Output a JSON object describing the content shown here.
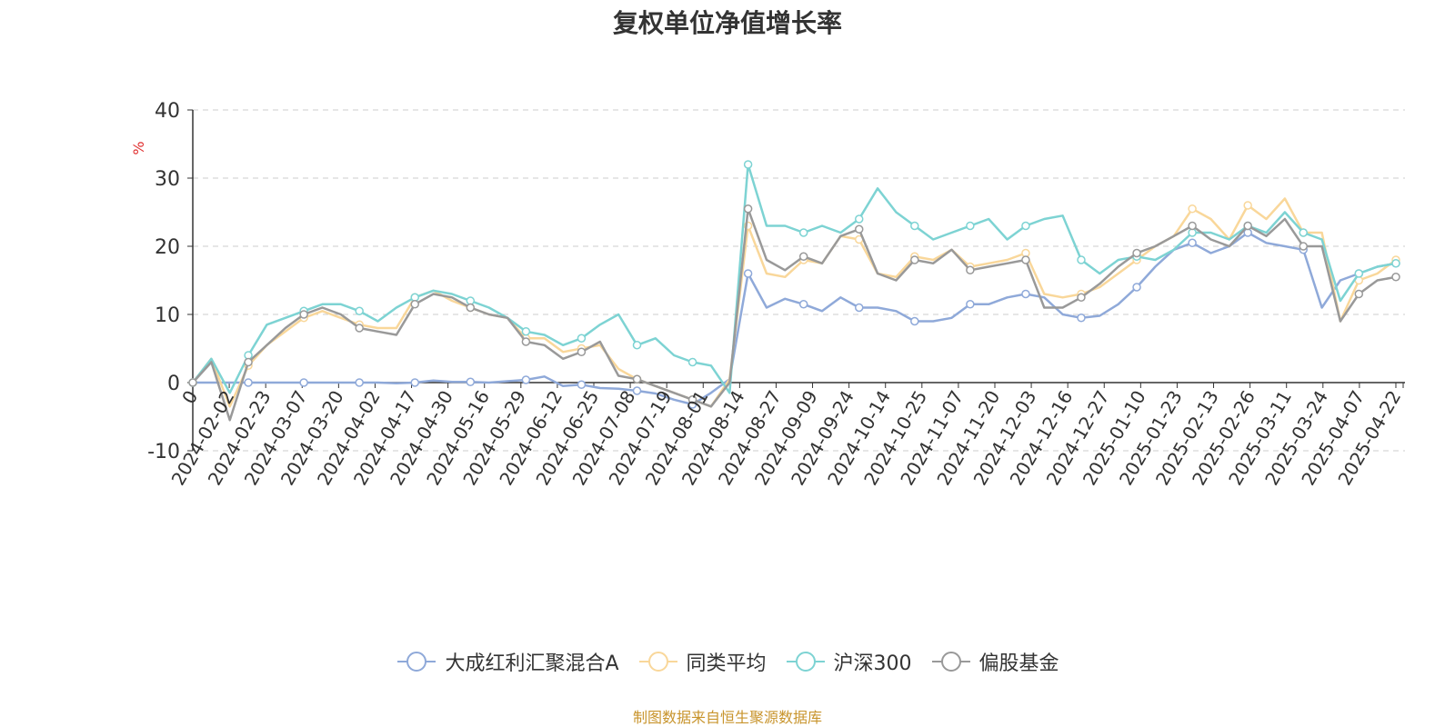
{
  "chart_data": {
    "type": "line",
    "title": "复权单位净值增长率",
    "ylabel": "%",
    "xlabel": "",
    "ylim": [
      -10,
      40
    ],
    "yticks": [
      -10,
      0,
      10,
      20,
      30,
      40
    ],
    "x_tick_labels": [
      "0",
      "2024-02-02",
      "2024-02-23",
      "2024-03-07",
      "2024-03-20",
      "2024-04-02",
      "2024-04-17",
      "2024-04-30",
      "2024-05-16",
      "2024-05-29",
      "2024-06-12",
      "2024-06-25",
      "2024-07-08",
      "2024-07-19",
      "2024-08-01",
      "2024-08-14",
      "2024-08-27",
      "2024-09-09",
      "2024-09-24",
      "2024-10-14",
      "2024-10-25",
      "2024-11-07",
      "2024-11-20",
      "2024-12-03",
      "2024-12-16",
      "2024-12-27",
      "2025-01-10",
      "2025-01-23",
      "2025-02-13",
      "2025-02-26",
      "2025-03-11",
      "2025-03-24",
      "2025-04-07",
      "2025-04-22"
    ],
    "grid": true,
    "legend_position": "bottom",
    "series": [
      {
        "name": "大成红利汇聚混合A",
        "color": "#8fa9d9",
        "values": [
          0,
          0,
          0,
          0,
          0,
          0,
          0,
          0,
          0,
          0,
          0,
          -0.1,
          0,
          0.3,
          0.1,
          0.1,
          0,
          0.2,
          0.4,
          0.9,
          -0.5,
          -0.3,
          -0.8,
          -0.9,
          -1.2,
          -1.6,
          -2.5,
          -3.2,
          -1.5,
          0.5,
          16,
          11,
          12.3,
          11.5,
          10.5,
          12.5,
          11,
          11,
          10.5,
          9,
          9,
          9.5,
          11.5,
          11.5,
          12.5,
          13,
          12.5,
          10,
          9.5,
          9.8,
          11.5,
          14,
          17,
          19.5,
          20.5,
          19,
          20,
          22,
          20.5,
          20,
          19.5,
          11,
          15,
          16,
          17,
          17.5
        ]
      },
      {
        "name": "同类平均",
        "color": "#f9d79a",
        "values": [
          0,
          3.5,
          -3.5,
          2.5,
          5.5,
          7.5,
          9.5,
          10.5,
          9.5,
          8.5,
          8,
          8,
          12.5,
          13.5,
          12,
          11,
          10,
          9.5,
          6.5,
          6.5,
          4.5,
          5,
          5.5,
          2,
          0.5,
          -0.5,
          -1.5,
          -2.5,
          -3.5,
          0.5,
          23,
          16,
          15.5,
          18,
          17.5,
          21.5,
          21,
          16,
          15.5,
          18.5,
          18,
          19.5,
          17,
          17.5,
          18,
          19,
          13,
          12.5,
          13,
          14,
          16,
          18,
          20,
          21.5,
          25.5,
          24,
          21,
          26,
          24,
          27,
          22,
          22,
          9,
          15,
          16,
          18
        ]
      },
      {
        "name": "沪深300",
        "color": "#7dd3d3",
        "values": [
          0,
          3.5,
          -1.5,
          4,
          8.5,
          9.5,
          10.5,
          11.5,
          11.5,
          10.5,
          9,
          11,
          12.5,
          13.5,
          13,
          12,
          11,
          9.5,
          7.5,
          7,
          5.5,
          6.5,
          8.5,
          10,
          5.5,
          6.5,
          4,
          3,
          2.5,
          -1.5,
          32,
          23,
          23,
          22,
          23,
          22,
          24,
          28.5,
          25,
          23,
          21,
          22,
          23,
          24,
          21,
          23,
          24,
          24.5,
          18,
          16,
          18,
          18.5,
          18,
          19.5,
          22,
          22,
          21,
          23,
          22,
          25,
          22,
          21,
          12,
          16,
          17,
          17.5
        ]
      },
      {
        "name": "偏股基金",
        "color": "#999999",
        "values": [
          0,
          3,
          -5.5,
          3,
          5.5,
          8,
          10,
          11,
          10,
          8,
          7.5,
          7,
          11.5,
          13,
          12.5,
          11,
          10,
          9.5,
          6,
          5.5,
          3.5,
          4.5,
          6,
          1,
          0.5,
          -0.5,
          -1.5,
          -2.5,
          -3.5,
          0,
          25.5,
          18,
          16.5,
          18.5,
          17.5,
          21.5,
          22.5,
          16,
          15,
          18,
          17.5,
          19.5,
          16.5,
          17,
          17.5,
          18,
          11,
          11,
          12.5,
          14.5,
          17,
          19,
          20,
          21.5,
          23,
          21,
          20,
          23,
          21.5,
          24,
          20,
          20,
          9,
          13,
          15,
          15.5
        ]
      }
    ]
  },
  "legend": {
    "items": [
      {
        "label": "大成红利汇聚混合A"
      },
      {
        "label": "同类平均"
      },
      {
        "label": "沪深300"
      },
      {
        "label": "偏股基金"
      }
    ]
  },
  "source_text": "制图数据来自恒生聚源数据库"
}
